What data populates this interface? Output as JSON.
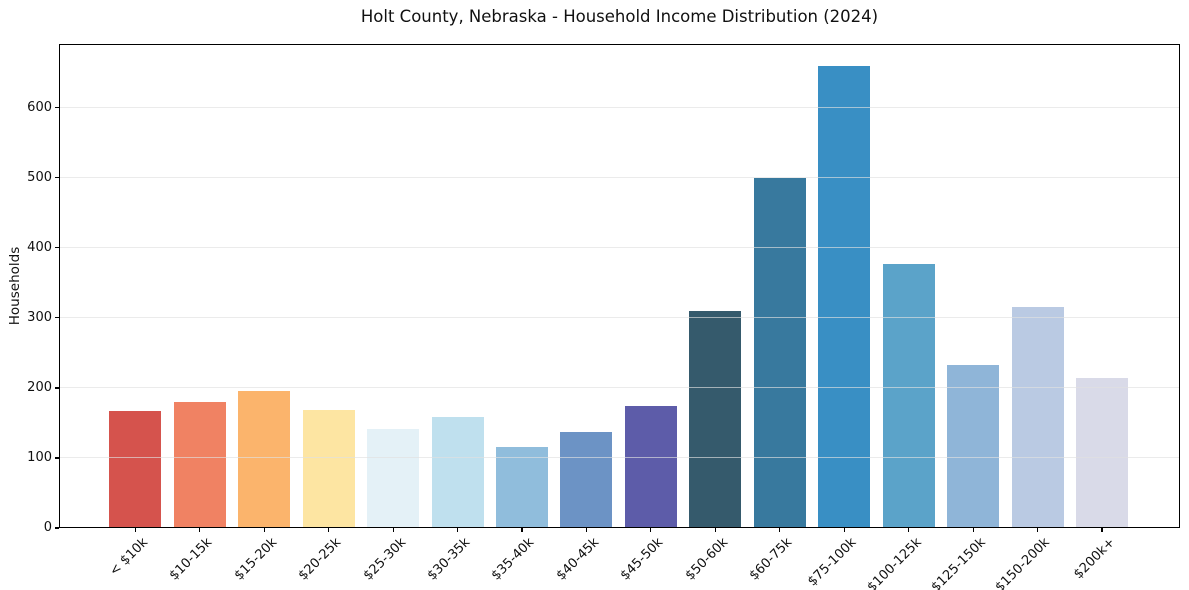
{
  "chart_data": {
    "type": "bar",
    "title": "Holt County, Nebraska - Household Income Distribution (2024)",
    "xlabel": "",
    "ylabel": "Households",
    "categories": [
      "< $10k",
      "$10-15k",
      "$15-20k",
      "$20-25k",
      "$25-30k",
      "$30-35k",
      "$35-40k",
      "$40-45k",
      "$45-50k",
      "$50-60k",
      "$60-75k",
      "$75-100k",
      "$100-125k",
      "$125-150k",
      "$150-200k",
      "$200k+"
    ],
    "values": [
      167,
      180,
      195,
      169,
      141,
      159,
      116,
      137,
      174,
      310,
      500,
      660,
      377,
      233,
      316,
      214
    ],
    "bar_colors": [
      "#d5534d",
      "#f08263",
      "#fbb46c",
      "#fde5a2",
      "#e4f1f7",
      "#bfe0ee",
      "#90bddc",
      "#6c93c5",
      "#5d5ca9",
      "#355a6c",
      "#38799e",
      "#398fc4",
      "#5ba3c9",
      "#8fb5d8",
      "#bacae3",
      "#d9dae8"
    ],
    "ylim": [
      0,
      691
    ],
    "yticks": [
      0,
      100,
      200,
      300,
      400,
      500,
      600
    ],
    "grid": "horizontal-y-only",
    "legend": "none",
    "axis_color": "#000000",
    "grid_color": "#e5e5e5",
    "background_color": "#ffffff"
  }
}
